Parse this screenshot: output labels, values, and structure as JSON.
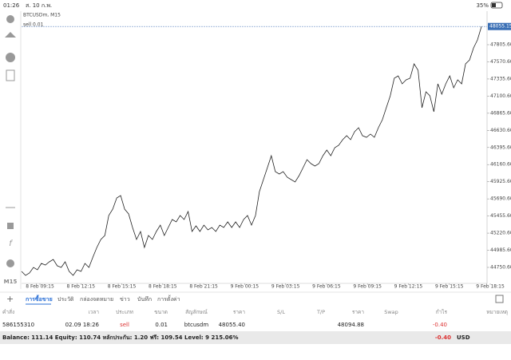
{
  "status_bar": {
    "time": "01:26",
    "date": "ส. 10 ก.พ.",
    "battery": "35%"
  },
  "chart_data": {
    "type": "line",
    "title": "BTCUSDm, M15",
    "order_label": "sell 0.01",
    "color": "#222",
    "values": [
      44696,
      44641,
      44674,
      44751,
      44718,
      44805,
      44783,
      44827,
      44860,
      44773,
      44751,
      44827,
      44696,
      44641,
      44718,
      44696,
      44805,
      44751,
      44893,
      45024,
      45134,
      45189,
      45462,
      45550,
      45703,
      45736,
      45550,
      45484,
      45298,
      45134,
      45243,
      45024,
      45189,
      45134,
      45243,
      45331,
      45189,
      45298,
      45408,
      45375,
      45462,
      45408,
      45517,
      45243,
      45320,
      45243,
      45331,
      45265,
      45298,
      45243,
      45331,
      45298,
      45375,
      45298,
      45375,
      45298,
      45408,
      45462,
      45331,
      45462,
      45791,
      45955,
      46119,
      46283,
      46065,
      46032,
      46065,
      45988,
      45955,
      45922,
      46010,
      46119,
      46229,
      46174,
      46141,
      46174,
      46283,
      46360,
      46283,
      46393,
      46426,
      46503,
      46557,
      46503,
      46612,
      46667,
      46557,
      46535,
      46579,
      46535,
      46667,
      46776,
      46941,
      47105,
      47346,
      47378,
      47269,
      47324,
      47346,
      47543,
      47455,
      46941,
      47160,
      47105,
      46886,
      47269,
      47127,
      47269,
      47378,
      47214,
      47324,
      47269,
      47543,
      47597,
      47762,
      47871,
      48055
    ],
    "x_labels": [
      "8 Feb 09:15",
      "8 Feb 12:15",
      "8 Feb 15:15",
      "8 Feb 18:15",
      "8 Feb 21:15",
      "9 Feb 00:15",
      "9 Feb 03:15",
      "9 Feb 06:15",
      "9 Feb 09:15",
      "9 Feb 12:15",
      "9 Feb 15:15",
      "9 Feb 18:15"
    ],
    "ylim": [
      44531.6,
      48265.6
    ],
    "yticks": [
      {
        "value": 44750.6,
        "label": "44750.60"
      },
      {
        "value": 44985.6,
        "label": "44985.60"
      },
      {
        "value": 45220.6,
        "label": "45220.60"
      },
      {
        "value": 45455.6,
        "label": "45455.60"
      },
      {
        "value": 45690.6,
        "label": "45690.60"
      },
      {
        "value": 45925.6,
        "label": "45925.60"
      },
      {
        "value": 46160.6,
        "label": "46160.60"
      },
      {
        "value": 46395.6,
        "label": "46395.60"
      },
      {
        "value": 46630.6,
        "label": "46630.60"
      },
      {
        "value": 46865.6,
        "label": "46865.60"
      },
      {
        "value": 47100.6,
        "label": "47100.60"
      },
      {
        "value": 47335.6,
        "label": "47335.60"
      },
      {
        "value": 47570.6,
        "label": "47570.60"
      },
      {
        "value": 47805.6,
        "label": "47805.60"
      }
    ],
    "current_price": {
      "value": 48055.15,
      "label": "48055.15"
    },
    "timeframe": "M15"
  },
  "tabs": [
    "การซื้อขาย",
    "ประวัติ",
    "กล่องจดหมาย",
    "ข่าว",
    "บันทึก",
    "การตั้งค่า"
  ],
  "table": {
    "columns": [
      "คำสั่ง",
      "เวลา",
      "ประเภท",
      "ขนาด",
      "สัญลักษณ์",
      "ราคา",
      "S/L",
      "T/P",
      "ราคา",
      "Swap",
      "กำไร",
      "หมายเหตุ"
    ],
    "row": {
      "order": "586155310",
      "time": "02.09 18:26",
      "type": "sell",
      "volume": "0.01",
      "symbol": "btcusdm",
      "open_price": "48055.40",
      "price": "48094.88",
      "profit": "-0.40"
    }
  },
  "footer": {
    "summary": "Balance: 111.14 Equity: 110.74 หลักประกัน: 1.20 ฟรี: 109.54 Level: 9 215.06%",
    "profit": "-0.40",
    "currency": "USD"
  }
}
